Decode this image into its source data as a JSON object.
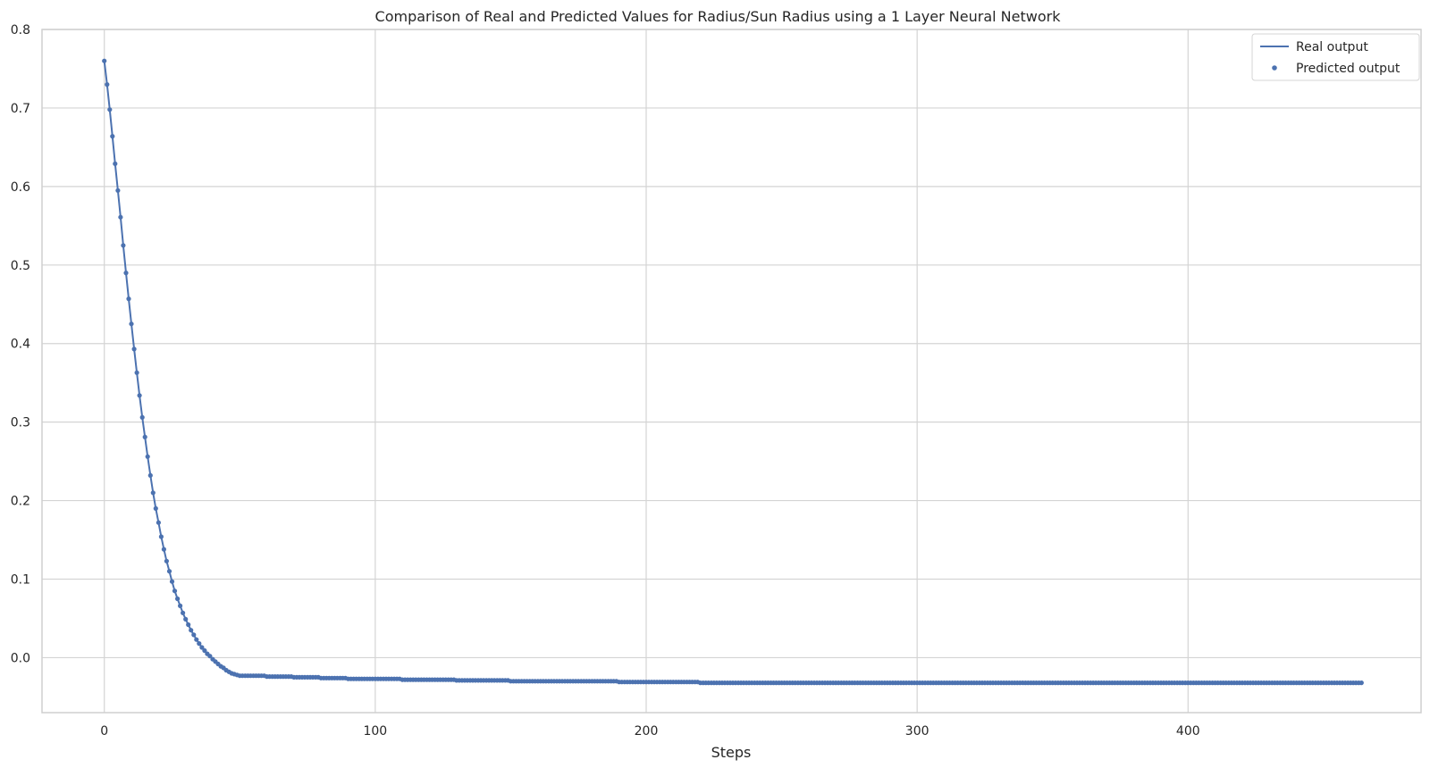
{
  "chart_data": {
    "type": "line",
    "title": "Comparison of Real and Predicted Values for Radius/Sun Radius using a 1 Layer Neural Network",
    "xlabel": "Steps",
    "ylabel": "",
    "xlim": [
      -23,
      486
    ],
    "ylim": [
      -0.07,
      0.8
    ],
    "x_ticks": [
      0,
      100,
      200,
      300,
      400
    ],
    "y_ticks": [
      0.8,
      0.7,
      0.6,
      0.5,
      0.4,
      0.3,
      0.2,
      0.1,
      0.0
    ],
    "x_tick_labels": [
      "0",
      "100",
      "200",
      "300",
      "400"
    ],
    "y_tick_labels": [
      "0.8",
      "0.7",
      "0.6",
      "0.5",
      "0.4",
      "0.3",
      "0.2",
      "0.1",
      "0.0"
    ],
    "grid": true,
    "legend_position": "top-right",
    "color": "#4c72b0",
    "series": [
      {
        "name": "Real output",
        "style": "line",
        "x": [
          0,
          1,
          2,
          3,
          4,
          5,
          6,
          7,
          8,
          9,
          10,
          11,
          12,
          13,
          14,
          15,
          16,
          17,
          18,
          19,
          20,
          21,
          22,
          23,
          24,
          25,
          26,
          27,
          28,
          29,
          30,
          31,
          32,
          33,
          34,
          35,
          36,
          37,
          38,
          39,
          40,
          41,
          42,
          43,
          44,
          45,
          46,
          47,
          48,
          49,
          50,
          55,
          60,
          70,
          80,
          90,
          100,
          110,
          120,
          130,
          140,
          150,
          160,
          170,
          180,
          190,
          200,
          205,
          220,
          240,
          260,
          280,
          300,
          320,
          340,
          360,
          380,
          400,
          420,
          440,
          460,
          464
        ],
        "y": [
          0.76,
          0.73,
          0.698,
          0.664,
          0.629,
          0.595,
          0.561,
          0.525,
          0.49,
          0.457,
          0.425,
          0.393,
          0.363,
          0.334,
          0.306,
          0.281,
          0.256,
          0.232,
          0.21,
          0.19,
          0.172,
          0.154,
          0.138,
          0.123,
          0.11,
          0.097,
          0.085,
          0.075,
          0.066,
          0.057,
          0.049,
          0.042,
          0.035,
          0.029,
          0.023,
          0.018,
          0.013,
          0.009,
          0.005,
          0.002,
          -0.002,
          -0.005,
          -0.008,
          -0.011,
          -0.013,
          -0.016,
          -0.018,
          -0.02,
          -0.021,
          -0.022,
          -0.023,
          -0.023,
          -0.024,
          -0.025,
          -0.026,
          -0.027,
          -0.027,
          -0.028,
          -0.028,
          -0.029,
          -0.029,
          -0.03,
          -0.03,
          -0.03,
          -0.03,
          -0.031,
          -0.031,
          -0.031,
          -0.032,
          -0.032,
          -0.032,
          -0.032,
          -0.032,
          -0.032,
          -0.032,
          -0.032,
          -0.032,
          -0.032,
          -0.032,
          -0.032,
          -0.032,
          -0.032
        ]
      },
      {
        "name": "Predicted output",
        "style": "scatter",
        "x": [
          0,
          1,
          2,
          3,
          4,
          5,
          6,
          7,
          8,
          9,
          10,
          11,
          12,
          13,
          14,
          15,
          16,
          17,
          18,
          19,
          20,
          21,
          22,
          23,
          24,
          25,
          26,
          27,
          28,
          29,
          30,
          31,
          32,
          33,
          34,
          35,
          36,
          37,
          38,
          39,
          40,
          41,
          42,
          43,
          44,
          45,
          46,
          47,
          48,
          49,
          50,
          55,
          60,
          70,
          80,
          90,
          100,
          110,
          120,
          130,
          140,
          150,
          160,
          170,
          180,
          190,
          200,
          205,
          220,
          240,
          260,
          280,
          300,
          320,
          340,
          360,
          380,
          400,
          420,
          440,
          460,
          464
        ],
        "y": [
          0.76,
          0.73,
          0.698,
          0.664,
          0.629,
          0.595,
          0.561,
          0.525,
          0.49,
          0.457,
          0.425,
          0.393,
          0.363,
          0.334,
          0.306,
          0.281,
          0.256,
          0.232,
          0.21,
          0.19,
          0.172,
          0.154,
          0.138,
          0.123,
          0.11,
          0.097,
          0.085,
          0.075,
          0.066,
          0.057,
          0.049,
          0.042,
          0.035,
          0.029,
          0.023,
          0.018,
          0.013,
          0.009,
          0.005,
          0.002,
          -0.002,
          -0.005,
          -0.008,
          -0.011,
          -0.013,
          -0.016,
          -0.018,
          -0.02,
          -0.021,
          -0.022,
          -0.023,
          -0.023,
          -0.024,
          -0.025,
          -0.026,
          -0.027,
          -0.027,
          -0.028,
          -0.028,
          -0.029,
          -0.029,
          -0.03,
          -0.03,
          -0.03,
          -0.03,
          -0.031,
          -0.031,
          -0.031,
          -0.032,
          -0.032,
          -0.032,
          -0.032,
          -0.032,
          -0.032,
          -0.032,
          -0.032,
          -0.032,
          -0.032,
          -0.032,
          -0.032,
          -0.032,
          -0.032
        ]
      }
    ]
  }
}
